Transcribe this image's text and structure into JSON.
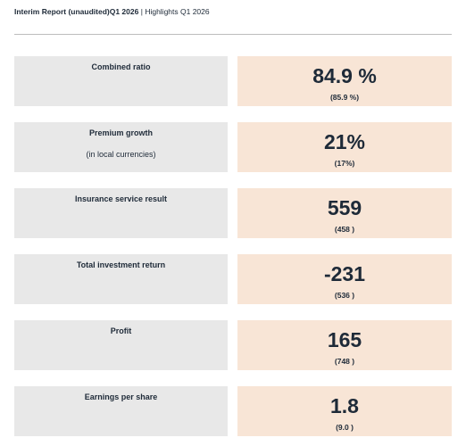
{
  "header": {
    "title": "Interim Report (unaudited)Q1 2026",
    "separator": "|",
    "subtitle": "Highlights Q1 2026"
  },
  "rows": [
    {
      "label": "Combined ratio",
      "value": "84.9 %",
      "prior": "(85.9 %)"
    },
    {
      "label": "Premium growth",
      "sublabel": "(in local currencies)",
      "value": "21%",
      "prior": "(17%)"
    },
    {
      "label": "Insurance service result",
      "value": "559",
      "prior": "(458 )"
    },
    {
      "label": "Total investment return",
      "value": "-231",
      "prior": "(536 )"
    },
    {
      "label": "Profit",
      "value": "165",
      "prior": "(748 )"
    },
    {
      "label": "Earnings per share",
      "value": "1.8",
      "prior": "(9.0 )"
    }
  ]
}
